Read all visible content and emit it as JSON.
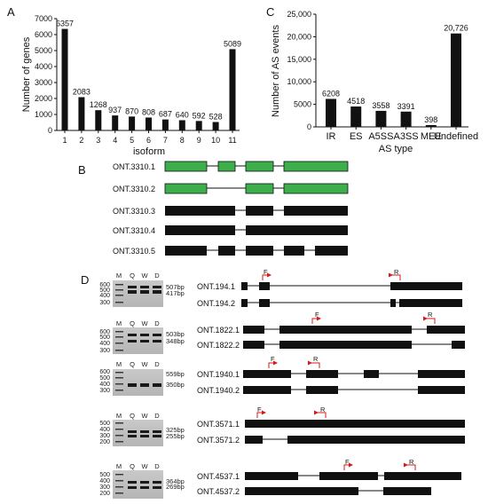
{
  "panels": {
    "A": "A",
    "B": "B",
    "C": "C",
    "D": "D"
  },
  "chart_a": {
    "type": "bar",
    "ylabel": "Number of genes",
    "xlabel": "isoform",
    "categories": [
      "1",
      "2",
      "3",
      "4",
      "5",
      "6",
      "7",
      "8",
      "9",
      "10",
      "11"
    ],
    "values": [
      6357,
      2083,
      1268,
      937,
      870,
      808,
      687,
      640,
      592,
      528,
      5089
    ],
    "value_labels": [
      "6357",
      "2083",
      "1268",
      "937",
      "870",
      "808",
      "687",
      "640",
      "592",
      "528",
      "5089"
    ],
    "yticks": [
      "0",
      "1000",
      "2000",
      "3000",
      "4000",
      "5000",
      "6000",
      "7000"
    ],
    "ylim": [
      0,
      7000
    ]
  },
  "chart_c": {
    "type": "bar",
    "ylabel": "Number of AS events",
    "xlabel": "AS type",
    "categories": [
      "IR",
      "ES",
      "A5SS",
      "A3SS",
      "MEE",
      "Undefined"
    ],
    "values": [
      6208,
      4518,
      3558,
      3391,
      398,
      20726
    ],
    "value_labels": [
      "6208",
      "4518",
      "3558",
      "3391",
      "398",
      "20,726"
    ],
    "yticks": [
      "0",
      "5000",
      "10,000",
      "15,000",
      "20,000",
      "25,000"
    ],
    "ylim": [
      0,
      25000
    ]
  },
  "chart_data": [
    {
      "type": "bar",
      "xlabel": "isoform",
      "ylabel": "Number of genes",
      "categories": [
        "1",
        "2",
        "3",
        "4",
        "5",
        "6",
        "7",
        "8",
        "9",
        "10",
        "11"
      ],
      "values": [
        6357,
        2083,
        1268,
        937,
        870,
        808,
        687,
        640,
        592,
        528,
        5089
      ],
      "ylim": [
        0,
        7000
      ],
      "grid": false
    },
    {
      "type": "bar",
      "xlabel": "AS type",
      "ylabel": "Number of AS events",
      "categories": [
        "IR",
        "ES",
        "A5SS",
        "A3SS",
        "MEE",
        "Undefined"
      ],
      "values": [
        6208,
        4518,
        3558,
        3391,
        398,
        20726
      ],
      "ylim": [
        0,
        25000
      ],
      "grid": false
    }
  ],
  "panel_b": {
    "isoforms": [
      "ONT.3310.1",
      "ONT.3310.2",
      "ONT.3310.3",
      "ONT.3310.4",
      "ONT.3310.5"
    ],
    "colors": {
      "green": "#3cae4a",
      "black": "#111111"
    }
  },
  "panel_d": {
    "gel_header": [
      "M",
      "Q",
      "W",
      "D"
    ],
    "marker_labels": {
      "g1": [
        "600",
        "500",
        "400",
        "300"
      ],
      "g2": [
        "600",
        "500",
        "400",
        "300"
      ],
      "g3": [
        "600",
        "500",
        "400",
        "300"
      ],
      "g4": [
        "500",
        "400",
        "300",
        "200"
      ],
      "g5": [
        "500",
        "400",
        "300",
        "200"
      ]
    },
    "bands": {
      "g1": [
        "507bp",
        "417bp"
      ],
      "g2": [
        "503bp",
        "348bp"
      ],
      "g3": [
        "559bp",
        "350bp"
      ],
      "g4": [
        "325bp",
        "255bp"
      ],
      "g5": [
        "364bp",
        "269bp"
      ]
    },
    "isoforms": {
      "g1": [
        "ONT.194.1",
        "ONT.194.2"
      ],
      "g2": [
        "ONT.1822.1",
        "ONT.1822.2"
      ],
      "g3": [
        "ONT.1940.1",
        "ONT.1940.2"
      ],
      "g4": [
        "ONT.3571.1",
        "ONT.3571.2"
      ],
      "g5": [
        "ONT.4537.1",
        "ONT.4537.2"
      ]
    },
    "primers": {
      "forward": "F",
      "reverse": "R"
    },
    "primer_color": "#d11a1a"
  }
}
